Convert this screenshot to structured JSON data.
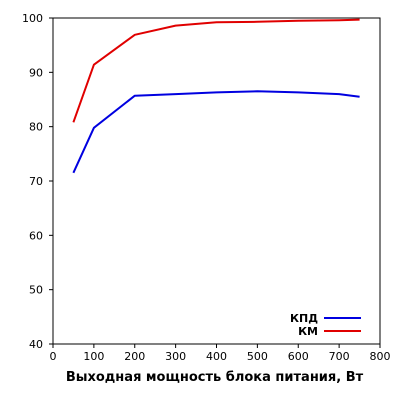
{
  "chart_data": {
    "type": "line",
    "title": "",
    "xlabel": "Выходная мощность блока питания, Вт",
    "ylabel": "",
    "xlim": [
      0,
      800
    ],
    "ylim": [
      40,
      100
    ],
    "xticks": [
      0,
      100,
      200,
      300,
      400,
      500,
      600,
      700,
      800
    ],
    "yticks": [
      40,
      50,
      60,
      70,
      80,
      90,
      100
    ],
    "grid": false,
    "legend_position": "bottom-right",
    "series": [
      {
        "name": "КПД",
        "color": "#0000e0",
        "x": [
          50,
          100,
          200,
          300,
          400,
          500,
          600,
          700,
          750
        ],
        "y": [
          71.5,
          79.8,
          85.7,
          86.0,
          86.3,
          86.5,
          86.3,
          86.0,
          85.5
        ]
      },
      {
        "name": "КМ",
        "color": "#e00000",
        "x": [
          50,
          100,
          200,
          300,
          400,
          500,
          600,
          700,
          750
        ],
        "y": [
          80.8,
          91.4,
          96.9,
          98.6,
          99.2,
          99.3,
          99.5,
          99.6,
          99.7
        ]
      }
    ]
  }
}
